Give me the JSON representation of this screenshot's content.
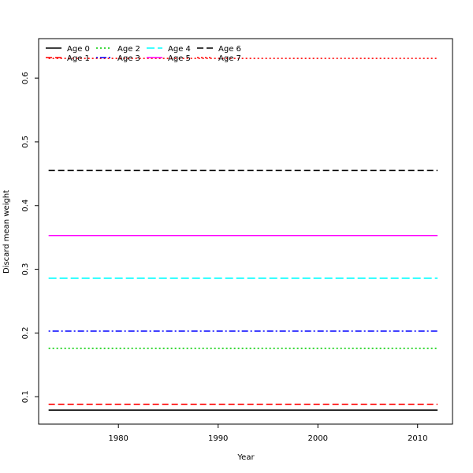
{
  "chart_data": {
    "type": "line",
    "title": "",
    "xlabel": "Year",
    "ylabel": "Discard mean weight",
    "xlim": [
      1972,
      2013.5
    ],
    "ylim": [
      0.057,
      0.662
    ],
    "x_ticks": [
      1980,
      1990,
      2000,
      2010
    ],
    "y_ticks": [
      0.1,
      0.2,
      0.3,
      0.4,
      0.5,
      0.6
    ],
    "x_tick_labels": [
      "1980",
      "1990",
      "2000",
      "2010"
    ],
    "y_tick_labels": [
      "0.1",
      "0.2",
      "0.3",
      "0.4",
      "0.5",
      "0.6"
    ],
    "x_range": [
      1973,
      2012
    ],
    "grid": false,
    "legend_position": "top-left",
    "series": [
      {
        "name": "Age 0",
        "color": "#000000",
        "dash": "solid",
        "value": 0.079
      },
      {
        "name": "Age 1",
        "color": "#ff0000",
        "dash": "dashed",
        "value": 0.088
      },
      {
        "name": "Age 2",
        "color": "#00cd00",
        "dash": "dotted",
        "value": 0.176
      },
      {
        "name": "Age 3",
        "color": "#0000ff",
        "dash": "dotdash",
        "value": 0.203
      },
      {
        "name": "Age 4",
        "color": "#00ffff",
        "dash": "longdash",
        "value": 0.286
      },
      {
        "name": "Age 5",
        "color": "#ff00ff",
        "dash": "solid",
        "value": 0.353
      },
      {
        "name": "Age 6",
        "color": "#000000",
        "dash": "dashed",
        "value": 0.455
      },
      {
        "name": "Age 7",
        "color": "#ff0000",
        "dash": "dotted",
        "value": 0.631
      }
    ]
  }
}
